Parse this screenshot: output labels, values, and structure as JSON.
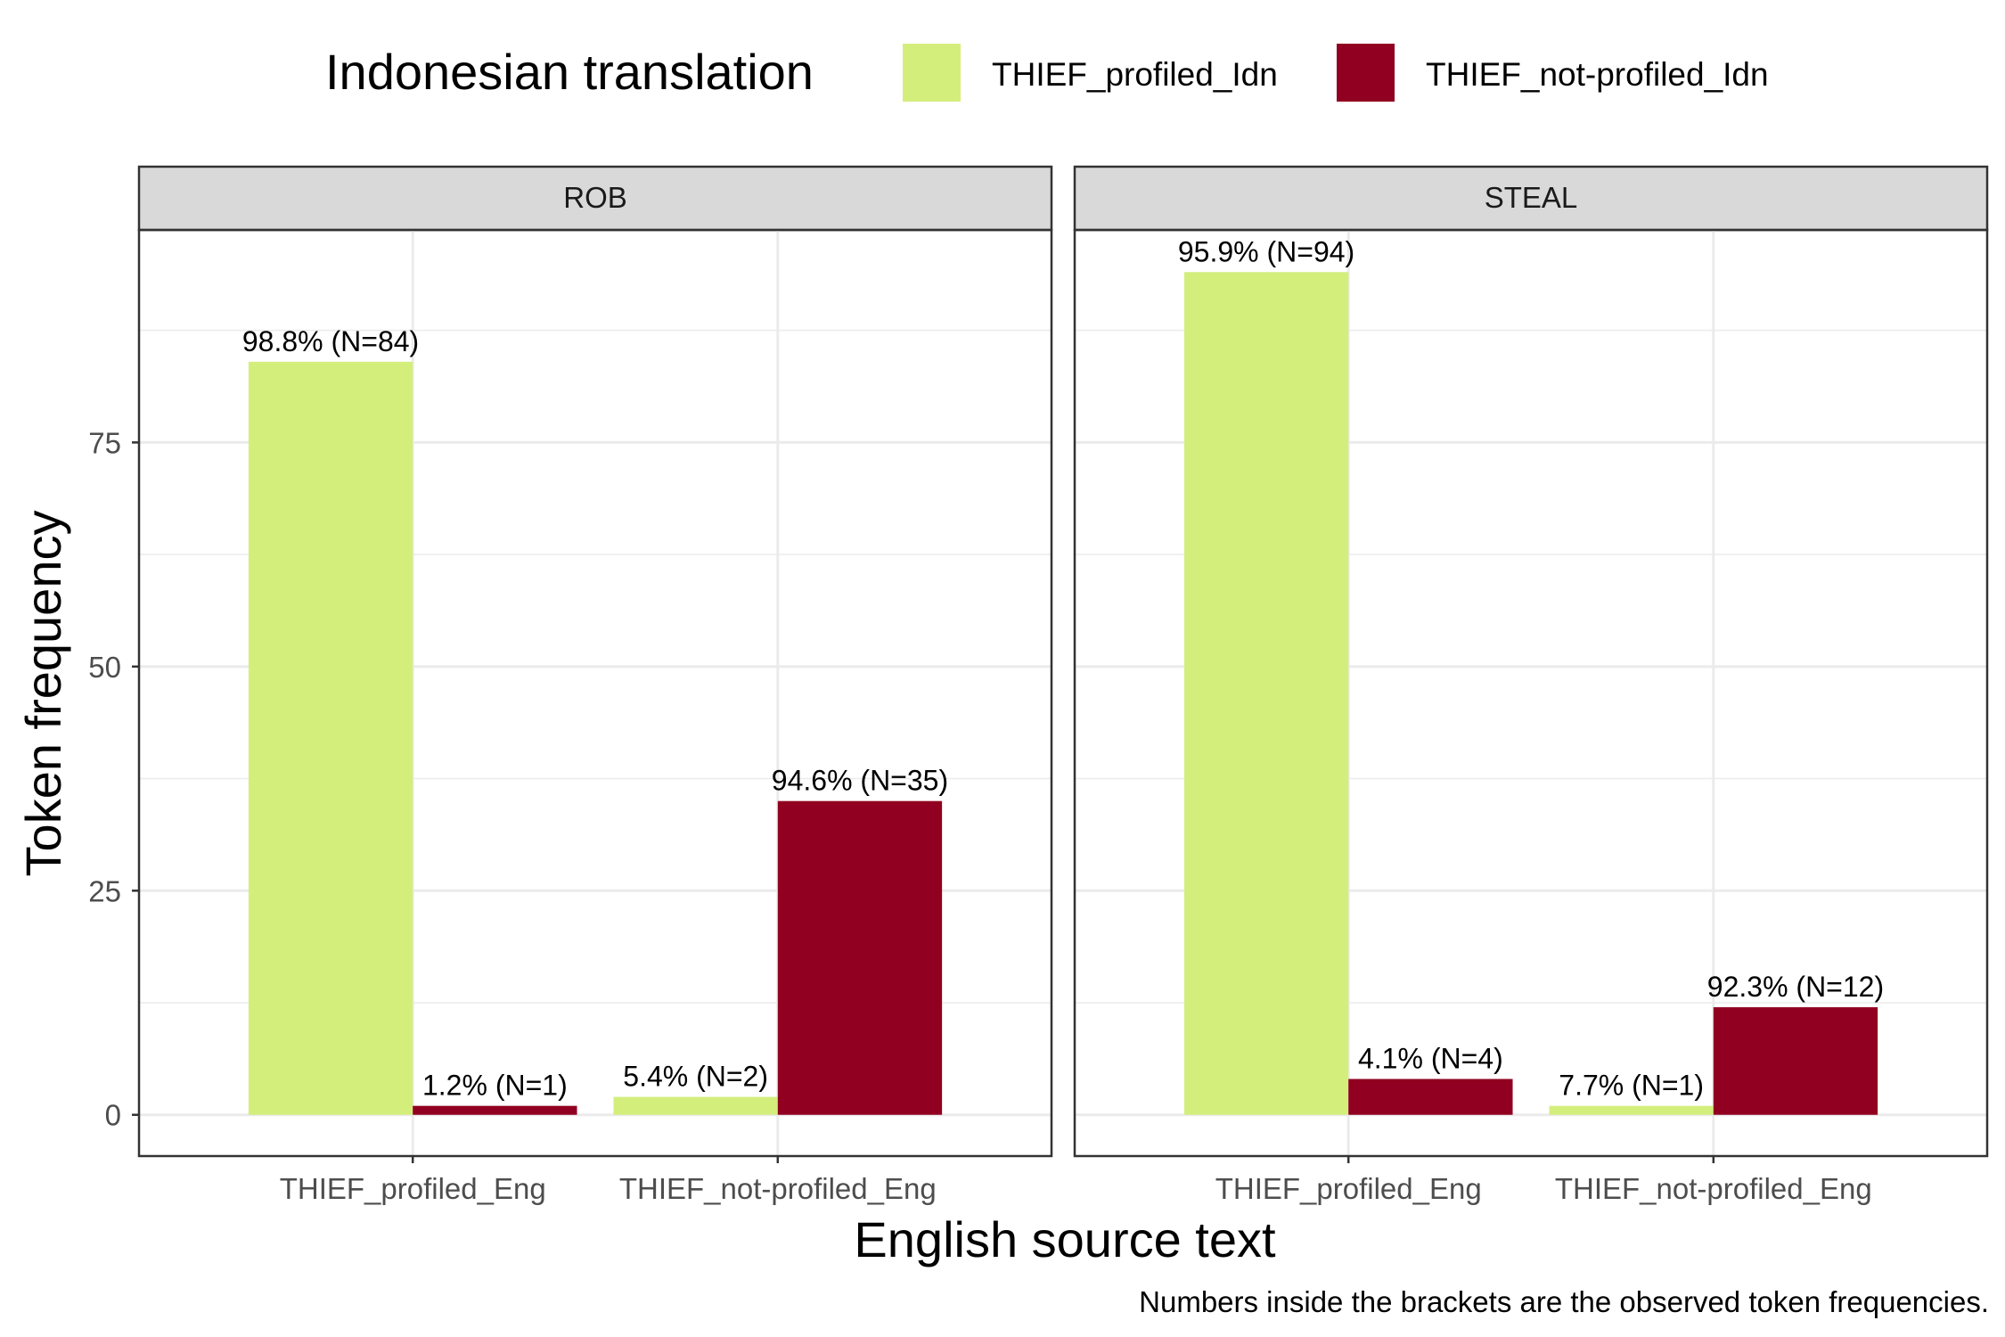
{
  "chart_data": {
    "type": "bar",
    "legend": {
      "title": "Indonesian translation",
      "placement": "top"
    },
    "xlabel": "English source text",
    "ylabel": "Token frequency",
    "caption": "Numbers inside the brackets are the observed token frequencies.",
    "ylim": [
      -4.6,
      98.7
    ],
    "yticks": [
      0,
      25,
      50,
      75
    ],
    "grid": true,
    "categories": [
      "THIEF_profiled_Eng",
      "THIEF_not-profiled_Eng"
    ],
    "series_styles": [
      {
        "name": "THIEF_profiled_Idn",
        "color": "#D4EE7C"
      },
      {
        "name": "THIEF_not-profiled_Idn",
        "color": "#910020"
      }
    ],
    "facets": [
      {
        "label": "ROB",
        "series": [
          {
            "name": "THIEF_profiled_Idn",
            "values": [
              84,
              2
            ],
            "labels": [
              "98.8% (N=84)",
              "5.4% (N=2)"
            ]
          },
          {
            "name": "THIEF_not-profiled_Idn",
            "values": [
              1,
              35
            ],
            "labels": [
              "1.2% (N=1)",
              "94.6% (N=35)"
            ]
          }
        ]
      },
      {
        "label": "STEAL",
        "series": [
          {
            "name": "THIEF_profiled_Idn",
            "values": [
              94,
              1
            ],
            "labels": [
              "95.9% (N=94)",
              "7.7% (N=1)"
            ]
          },
          {
            "name": "THIEF_not-profiled_Idn",
            "values": [
              4,
              12
            ],
            "labels": [
              "4.1% (N=4)",
              "92.3% (N=12)"
            ]
          }
        ]
      }
    ]
  }
}
